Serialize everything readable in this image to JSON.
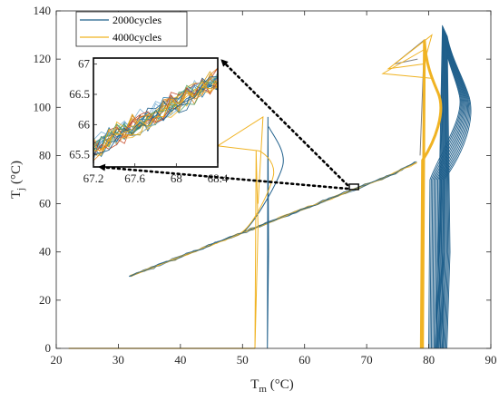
{
  "chart_data": {
    "type": "line",
    "xlabel": "T",
    "xlabel_sub": "m",
    "xlabel_unit": " (°C)",
    "ylabel": "T",
    "ylabel_sub": "j",
    "ylabel_unit": " (°C)",
    "xlim": [
      20,
      90
    ],
    "ylim": [
      0,
      140
    ],
    "xticks": [
      "20",
      "30",
      "40",
      "50",
      "60",
      "70",
      "80",
      "90"
    ],
    "yticks": [
      "0",
      "20",
      "40",
      "60",
      "80",
      "100",
      "120",
      "140"
    ],
    "legend_position": "top-left",
    "series": [
      {
        "name": "2000cycles",
        "color": "#1f5f8b"
      },
      {
        "name": "4000cycles",
        "color": "#f0b323"
      }
    ],
    "heating_ramp": {
      "x": [
        32,
        40,
        48,
        56,
        64,
        68,
        74,
        78
      ],
      "y": [
        30,
        38,
        46,
        54,
        62,
        66,
        72,
        78
      ]
    },
    "low_loop_2000": {
      "x": [
        54,
        54.3,
        54.2,
        54,
        54
      ],
      "y": [
        0,
        70,
        92,
        96,
        0
      ]
    },
    "low_loop_4000": {
      "x": [
        52,
        52.5,
        52.8,
        53,
        52
      ],
      "y": [
        0,
        60,
        82,
        96,
        0
      ]
    },
    "high_loop_2000": {
      "x": [
        80,
        82,
        85.5,
        84,
        82,
        80
      ],
      "y": [
        0,
        78,
        102,
        118,
        136,
        0
      ]
    },
    "high_loop_4000": {
      "x": [
        78.8,
        79.2,
        82,
        80.5,
        79.2,
        78.8
      ],
      "y": [
        0,
        78,
        100,
        116,
        130,
        0
      ]
    },
    "zoom_box": {
      "xlim": [
        67.2,
        68.4
      ],
      "ylim": [
        65.5,
        67
      ]
    },
    "inset": {
      "xticks": [
        "67.2",
        "67.6",
        "68",
        "68.4"
      ],
      "yticks": [
        "65.5",
        "66",
        "66.5",
        "67"
      ],
      "xlim": [
        67.2,
        68.4
      ],
      "ylim": [
        65.3,
        67.1
      ]
    }
  }
}
